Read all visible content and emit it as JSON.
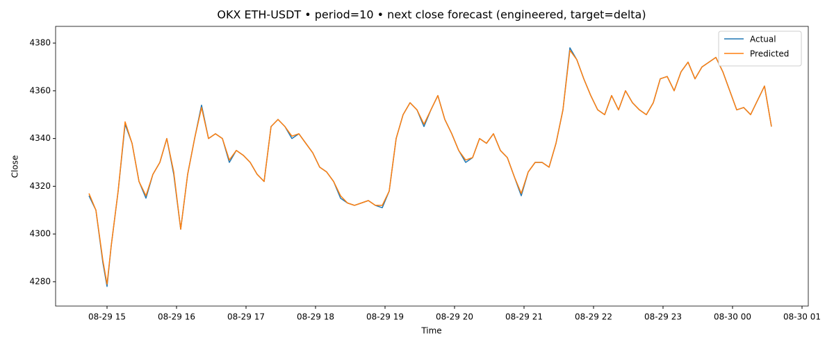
{
  "chart_data": {
    "type": "line",
    "title": "OKX ETH-USDT • period=10 • next close forecast (engineered, target=delta)",
    "x_label": "Time",
    "y_label": "Close",
    "x": [
      14.74,
      14.84,
      14.94,
      15.0,
      15.06,
      15.16,
      15.26,
      15.36,
      15.46,
      15.56,
      15.66,
      15.76,
      15.86,
      15.96,
      16.06,
      16.16,
      16.26,
      16.36,
      16.46,
      16.56,
      16.66,
      16.76,
      16.86,
      16.96,
      17.06,
      17.16,
      17.26,
      17.36,
      17.46,
      17.56,
      17.66,
      17.76,
      17.86,
      17.96,
      18.06,
      18.16,
      18.26,
      18.36,
      18.46,
      18.56,
      18.66,
      18.76,
      18.86,
      18.96,
      19.06,
      19.16,
      19.26,
      19.36,
      19.46,
      19.56,
      19.66,
      19.76,
      19.86,
      19.96,
      20.06,
      20.16,
      20.26,
      20.36,
      20.46,
      20.56,
      20.66,
      20.76,
      20.86,
      20.96,
      21.06,
      21.16,
      21.26,
      21.36,
      21.46,
      21.56,
      21.66,
      21.76,
      21.86,
      21.96,
      22.06,
      22.16,
      22.26,
      22.36,
      22.46,
      22.56,
      22.66,
      22.76,
      22.86,
      22.96,
      23.06,
      23.16,
      23.26,
      23.36,
      23.46,
      23.56,
      23.66,
      23.76,
      23.86,
      23.96,
      24.06,
      24.16,
      24.26,
      24.36,
      24.46,
      24.56
    ],
    "series": [
      {
        "name": "Actual",
        "color": "#1f77b4",
        "values": [
          4316,
          4310,
          4288,
          4278,
          4295,
          4318,
          4346,
          4338,
          4322,
          4315,
          4325,
          4330,
          4340,
          4325,
          4302,
          4325,
          4340,
          4354,
          4340,
          4342,
          4340,
          4330,
          4335,
          4333,
          4330,
          4325,
          4322,
          4345,
          4348,
          4345,
          4340,
          4342,
          4338,
          4334,
          4328,
          4326,
          4322,
          4315,
          4313,
          4312,
          4313,
          4314,
          4312,
          4311,
          4318,
          4340,
          4350,
          4355,
          4352,
          4345,
          4352,
          4358,
          4348,
          4342,
          4335,
          4330,
          4332,
          4340,
          4338,
          4342,
          4335,
          4332,
          4324,
          4316,
          4326,
          4330,
          4330,
          4328,
          4338,
          4352,
          4378,
          4373,
          4365,
          4358,
          4352,
          4350,
          4358,
          4352,
          4360,
          4355,
          4352,
          4350,
          4355,
          4365,
          4366,
          4360,
          4368,
          4372,
          4365,
          4370,
          4372,
          4374,
          4368,
          4360,
          4352,
          4353,
          4350,
          4356,
          4362,
          4345
        ]
      },
      {
        "name": "Predicted",
        "color": "#ff7f0e",
        "values": [
          4317,
          4310,
          4289,
          4279,
          4295,
          4318,
          4347,
          4338,
          4322,
          4316,
          4325,
          4330,
          4340,
          4326,
          4302,
          4325,
          4340,
          4353,
          4340,
          4342,
          4340,
          4331,
          4335,
          4333,
          4330,
          4325,
          4322,
          4345,
          4348,
          4345,
          4341,
          4342,
          4338,
          4334,
          4328,
          4326,
          4322,
          4316,
          4313,
          4312,
          4313,
          4314,
          4312,
          4312,
          4318,
          4340,
          4350,
          4355,
          4352,
          4346,
          4352,
          4358,
          4348,
          4342,
          4335,
          4331,
          4332,
          4340,
          4338,
          4342,
          4335,
          4332,
          4324,
          4317,
          4326,
          4330,
          4330,
          4328,
          4338,
          4352,
          4377,
          4373,
          4365,
          4358,
          4352,
          4350,
          4358,
          4352,
          4360,
          4355,
          4352,
          4350,
          4355,
          4365,
          4366,
          4360,
          4368,
          4372,
          4365,
          4370,
          4372,
          4374,
          4368,
          4360,
          4352,
          4353,
          4350,
          4356,
          4362,
          4345
        ]
      }
    ],
    "xlim": [
      14.26,
      25.09
    ],
    "ylim": [
      4269.8,
      4387
    ],
    "xticks": [
      {
        "value": 15,
        "label": "08-29 15"
      },
      {
        "value": 16,
        "label": "08-29 16"
      },
      {
        "value": 17,
        "label": "08-29 17"
      },
      {
        "value": 18,
        "label": "08-29 18"
      },
      {
        "value": 19,
        "label": "08-29 19"
      },
      {
        "value": 20,
        "label": "08-29 20"
      },
      {
        "value": 21,
        "label": "08-29 21"
      },
      {
        "value": 22,
        "label": "08-29 22"
      },
      {
        "value": 23,
        "label": "08-29 23"
      },
      {
        "value": 24,
        "label": "08-30 00"
      },
      {
        "value": 25,
        "label": "08-30 01"
      }
    ],
    "yticks": [
      4280,
      4300,
      4320,
      4340,
      4360,
      4380
    ],
    "legend": "upper right"
  }
}
